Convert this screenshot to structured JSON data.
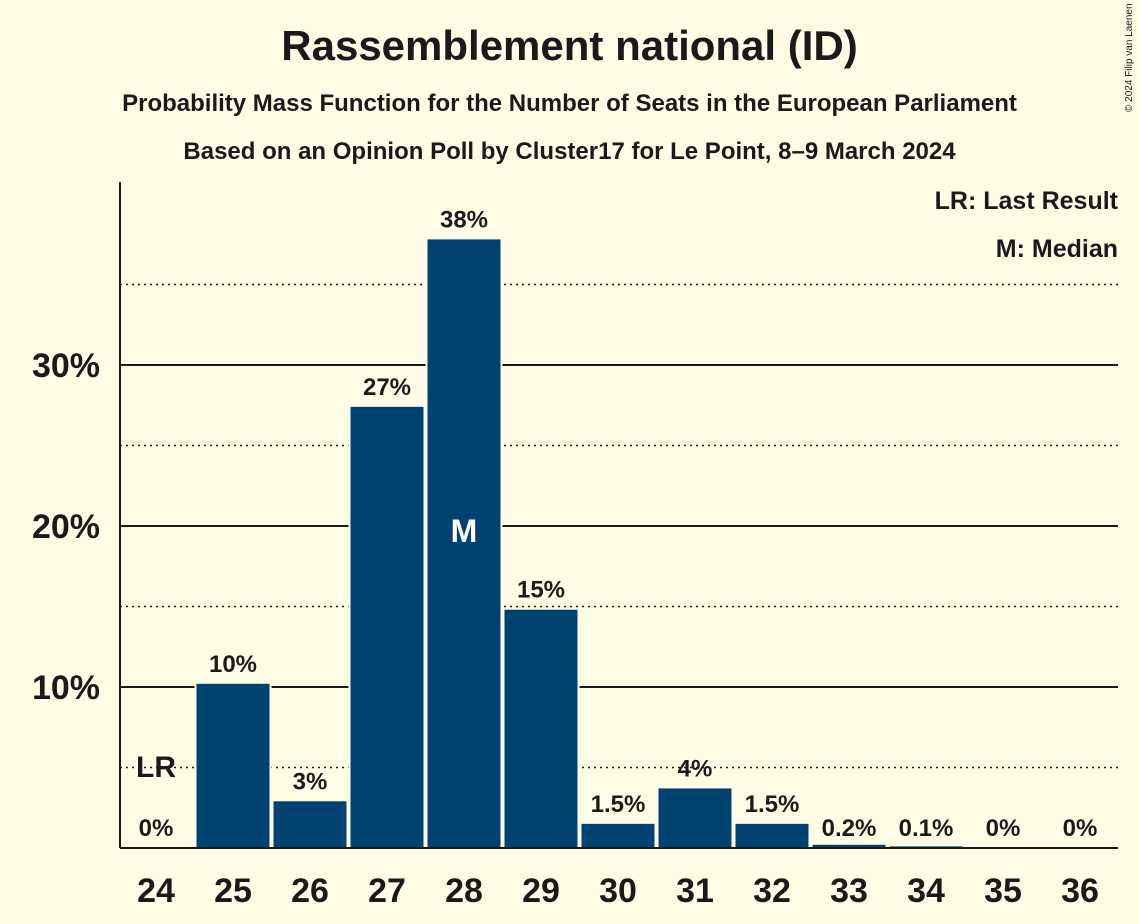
{
  "title": "Rassemblement national (ID)",
  "subtitle": "Probability Mass Function for the Number of Seats in the European Parliament",
  "subtitle2": "Based on an Opinion Poll by Cluster17 for Le Point, 8–9 March 2024",
  "copyright": "© 2024 Filip van Laenen",
  "legend": {
    "last_result": "LR: Last Result",
    "median": "M: Median"
  },
  "chart_data": {
    "type": "bar",
    "categories": [
      "24",
      "25",
      "26",
      "27",
      "28",
      "29",
      "30",
      "31",
      "32",
      "33",
      "34",
      "35",
      "36"
    ],
    "values": [
      0,
      10.2,
      2.9,
      27.4,
      37.8,
      14.8,
      1.5,
      3.7,
      1.5,
      0.2,
      0.1,
      0,
      0
    ],
    "data_labels": [
      "0%",
      "10%",
      "3%",
      "27%",
      "38%",
      "15%",
      "1.5%",
      "4%",
      "1.5%",
      "0.2%",
      "0.1%",
      "0%",
      "0%"
    ],
    "ylim": [
      0,
      41.5
    ],
    "yticks": [
      10,
      20,
      30
    ],
    "ytick_labels": [
      "10%",
      "20%",
      "30%"
    ],
    "minor_gridlines": [
      5,
      15,
      25,
      35
    ],
    "last_result_category": "24",
    "last_result_label": "LR",
    "median_category": "28",
    "median_label": "M",
    "bar_color": "#004373",
    "grid": true,
    "legend_position": "top-right"
  }
}
